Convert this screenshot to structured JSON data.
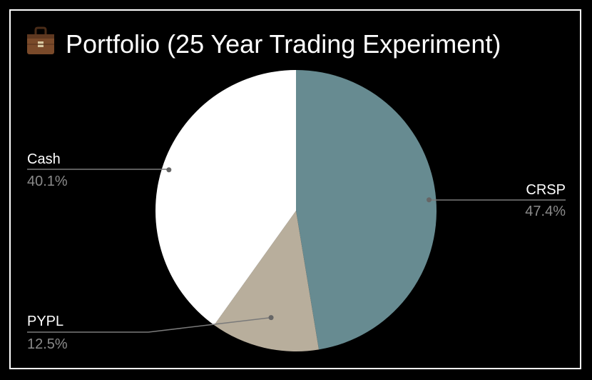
{
  "chart_data": {
    "type": "pie",
    "title": "Portfolio (25 Year Trading Experiment)",
    "title_icon": "briefcase-icon",
    "background": "#000000",
    "slices": [
      {
        "label": "CRSP",
        "value": 47.4,
        "percent_label": "47.4%",
        "color": "#678b91"
      },
      {
        "label": "PYPL",
        "value": 12.5,
        "percent_label": "12.5%",
        "color": "#b8ae9c"
      },
      {
        "label": "Cash",
        "value": 40.1,
        "percent_label": "40.1%",
        "color": "#ffffff"
      }
    ],
    "start_angle": "12 o'clock",
    "direction": "clockwise",
    "legend": "none",
    "labels": "outside-with-leader-lines"
  }
}
